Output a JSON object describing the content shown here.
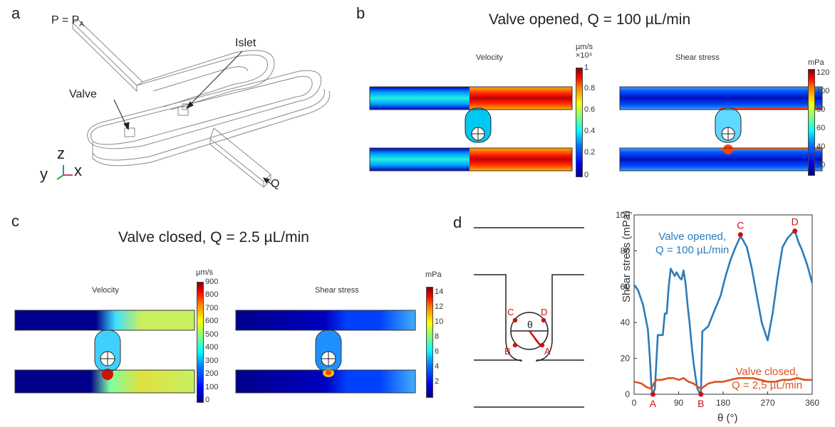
{
  "panel_a": {
    "letter": "a",
    "label_pressure": "P = P",
    "label_pressure_sub": "A",
    "label_islet": "Islet",
    "label_valve": "Valve",
    "label_flow": "Q",
    "axis_y": "y",
    "axis_z": "z",
    "axis_x": "x"
  },
  "panel_b": {
    "letter": "b",
    "title": "Valve opened, Q = 100 µL/min",
    "velocity_label": "Velocity",
    "shear_label": "Shear stress",
    "velocity_unit": "µm/s",
    "velocity_scale": "×10⁴",
    "velocity_ticks": [
      "1",
      "0.8",
      "0.6",
      "0.4",
      "0.2",
      "0"
    ],
    "shear_unit": "mPa",
    "shear_ticks": [
      "120",
      "100",
      "80",
      "60",
      "40",
      "20"
    ]
  },
  "panel_c": {
    "letter": "c",
    "title": "Valve closed, Q = 2.5 µL/min",
    "velocity_label": "Velocity",
    "shear_label": "Shear stress",
    "velocity_unit": "µm/s",
    "velocity_ticks": [
      "900",
      "800",
      "700",
      "600",
      "500",
      "400",
      "300",
      "200",
      "100",
      "0"
    ],
    "shear_unit": "mPa",
    "shear_ticks": [
      "14",
      "12",
      "10",
      "8",
      "6",
      "4",
      "2"
    ]
  },
  "panel_d": {
    "letter": "d",
    "diagram_points": [
      "C",
      "D",
      "B",
      "A"
    ],
    "diagram_angle": "θ"
  },
  "chart_data": {
    "type": "line",
    "title": "",
    "xlabel": "θ (°)",
    "ylabel": "Shear stress (mPa)",
    "xlim": [
      0,
      360
    ],
    "ylim": [
      0,
      100
    ],
    "xticks": [
      0,
      90,
      180,
      270,
      360
    ],
    "yticks": [
      0,
      20,
      40,
      60,
      80,
      100
    ],
    "series": [
      {
        "name": "Valve opened, Q = 100 µL/min",
        "color": "#2b7bb9",
        "x": [
          0,
          8,
          18,
          28,
          32,
          35,
          38,
          42,
          48,
          52,
          58,
          62,
          66,
          70,
          74,
          78,
          82,
          86,
          92,
          96,
          100,
          104,
          108,
          112,
          116,
          120,
          124,
          128,
          132,
          135,
          138,
          142,
          146,
          150,
          160,
          175,
          185,
          195,
          205,
          215,
          220,
          228,
          238,
          248,
          258,
          270,
          280,
          290,
          300,
          310,
          320,
          325,
          332,
          340,
          350,
          360
        ],
        "y": [
          61,
          58,
          50,
          36,
          20,
          4,
          0,
          3,
          33,
          33,
          33,
          45,
          45,
          60,
          70,
          68,
          66,
          68,
          65,
          64,
          69,
          62,
          50,
          40,
          28,
          18,
          10,
          3,
          1,
          0,
          35,
          36,
          37,
          38,
          45,
          55,
          66,
          75,
          82,
          88,
          86,
          82,
          70,
          55,
          40,
          30,
          45,
          65,
          82,
          87,
          90,
          91,
          85,
          80,
          72,
          62
        ]
      },
      {
        "name": "Valve closed, Q = 2.5 µL/min",
        "color": "#d9541e",
        "x": [
          0,
          15,
          25,
          35,
          40,
          45,
          55,
          70,
          80,
          90,
          100,
          110,
          120,
          130,
          135,
          140,
          150,
          165,
          180,
          195,
          210,
          225,
          240,
          255,
          270,
          285,
          300,
          315,
          330,
          345,
          360
        ],
        "y": [
          7,
          6,
          4,
          3,
          6,
          8,
          8,
          9,
          9,
          8,
          9,
          7,
          6,
          4,
          3,
          4,
          6,
          7,
          7,
          8,
          9,
          9,
          9,
          8,
          7,
          7,
          8,
          8,
          9,
          8,
          8
        ]
      }
    ],
    "annotations": [
      {
        "label": "A",
        "x": 38,
        "y": 0
      },
      {
        "label": "B",
        "x": 135,
        "y": 0
      },
      {
        "label": "C",
        "x": 215,
        "y": 89
      },
      {
        "label": "D",
        "x": 325,
        "y": 91
      }
    ],
    "legend_text": {
      "opened_line1": "Valve opened,",
      "opened_line2": "Q = 100 µL/min",
      "closed_line1": "Valve closed,",
      "closed_line2": "Q = 2,5 µL/min"
    }
  }
}
